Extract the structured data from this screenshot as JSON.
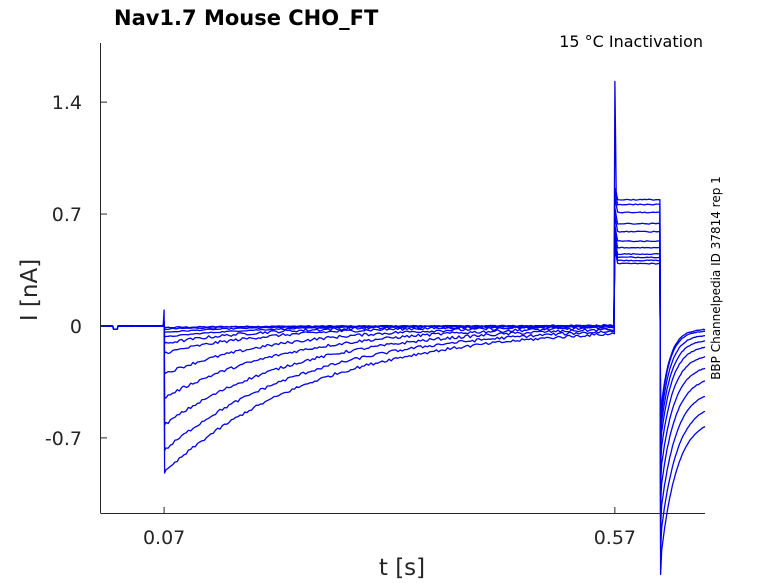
{
  "chart_data": {
    "type": "line",
    "title": "Nav1.7  Mouse  CHO_FT",
    "subtitle": "15 °C  Inactivation",
    "side_note": "BBP Channelpedia ID 37814 rep 1",
    "xlabel": "t [s]",
    "ylabel": "I [nA]",
    "xlim": [
      0.0,
      0.67
    ],
    "ylim": [
      -1.17,
      1.77
    ],
    "x_ticks": [
      {
        "value": 0.07,
        "label": "0.07"
      },
      {
        "value": 0.57,
        "label": "0.57"
      }
    ],
    "y_ticks": [
      {
        "value": 1.4,
        "label": "1.4"
      },
      {
        "value": 0.7,
        "label": "0.7"
      },
      {
        "value": 0,
        "label": "0"
      },
      {
        "value": -0.7,
        "label": "-0.7"
      }
    ],
    "grid": false,
    "line_color": "#0000ee",
    "protocol": {
      "holding_end": 0.013,
      "step1_start": 0.07,
      "step1_end": 0.57,
      "step2_end": 0.62,
      "t_end": 0.67
    },
    "series": [
      {
        "peak1": -0.01,
        "tau1": 0.08,
        "step2": 0.39,
        "tail": -0.03,
        "tail_tau": 0.01
      },
      {
        "peak1": -0.02,
        "tau1": 0.08,
        "step2": 0.41,
        "tail": -0.05,
        "tail_tau": 0.01
      },
      {
        "peak1": -0.04,
        "tau1": 0.09,
        "step2": 0.43,
        "tail": -0.09,
        "tail_tau": 0.011
      },
      {
        "peak1": -0.07,
        "tau1": 0.1,
        "step2": 0.45,
        "tail": -0.14,
        "tail_tau": 0.012
      },
      {
        "peak1": -0.11,
        "tau1": 0.11,
        "step2": 0.49,
        "tail": -0.2,
        "tail_tau": 0.013
      },
      {
        "peak1": -0.17,
        "tau1": 0.12,
        "step2": 0.53,
        "tail": -0.29,
        "tail_tau": 0.014
      },
      {
        "peak1": -0.3,
        "tau1": 0.13,
        "step2": 0.59,
        "tail": -0.4,
        "tail_tau": 0.015
      },
      {
        "peak1": -0.45,
        "tau1": 0.14,
        "step2": 0.64,
        "tail": -0.52,
        "tail_tau": 0.016
      },
      {
        "peak1": -0.62,
        "tau1": 0.15,
        "step2": 0.71,
        "tail": -0.66,
        "tail_tau": 0.017
      },
      {
        "peak1": -0.78,
        "tau1": 0.16,
        "step2": 0.76,
        "tail": -0.8,
        "tail_tau": 0.018
      },
      {
        "peak1": -0.92,
        "tau1": 0.17,
        "step2": 0.79,
        "tail": -0.95,
        "tail_tau": 0.018
      }
    ],
    "transients": {
      "step1_spike": 0.1,
      "step2_spike": 1.53,
      "step2_spike_width": 0.0015
    }
  }
}
